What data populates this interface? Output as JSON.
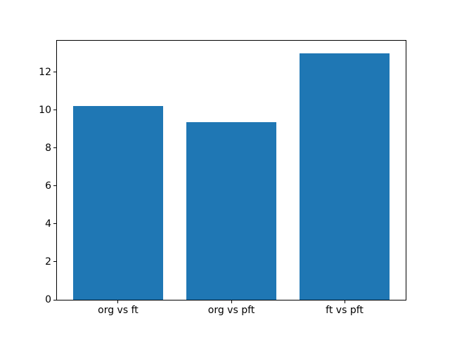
{
  "chart_data": {
    "type": "bar",
    "title": "",
    "xlabel": "",
    "ylabel": "",
    "categories": [
      "org vs ft",
      "org vs pft",
      "ft vs pft"
    ],
    "values": [
      10.2,
      9.35,
      13.0
    ],
    "yticks": [
      0,
      2,
      4,
      6,
      8,
      10,
      12
    ],
    "ylim": [
      0,
      13.65
    ],
    "bar_color": "#1f77b4",
    "spine_color": "#000000",
    "background": "#ffffff",
    "grid": false,
    "legend": "none"
  }
}
